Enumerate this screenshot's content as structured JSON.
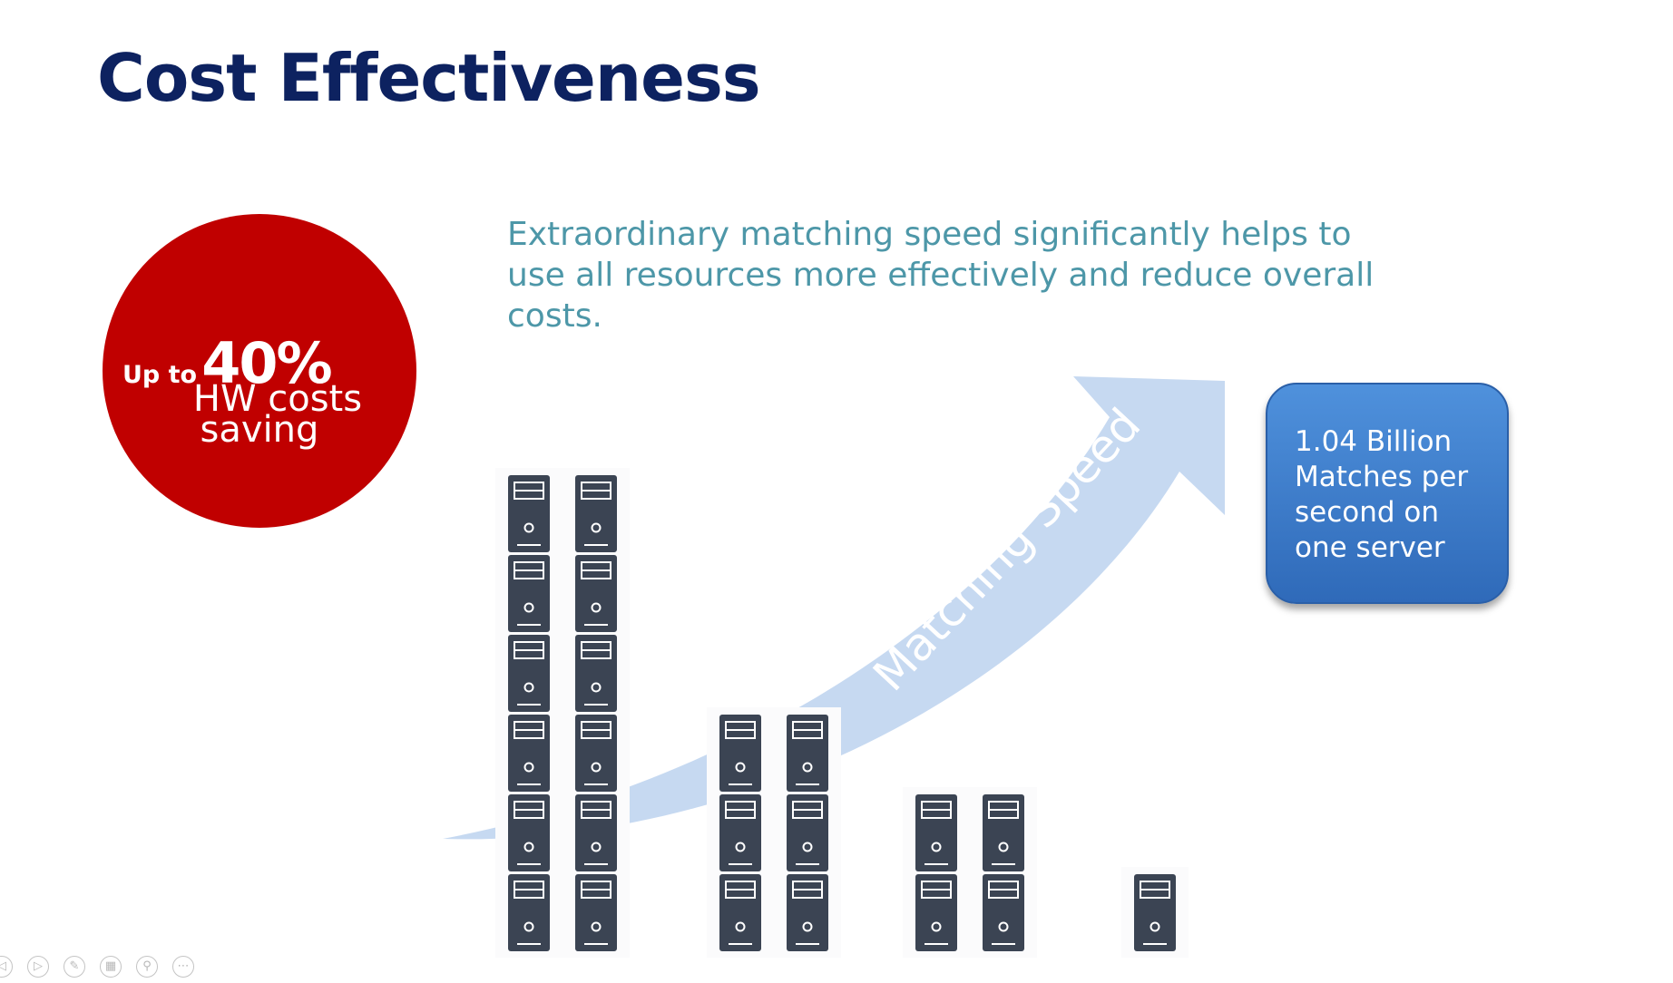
{
  "slide": {
    "title": "Cost Effectiveness",
    "description": "Extraordinary matching speed significantly helps to use all resources more effectively and reduce overall costs."
  },
  "badge": {
    "prefix": "Up to",
    "percent": "40%",
    "line1": "HW costs",
    "line2": "saving",
    "color": "#c00000"
  },
  "arrow": {
    "label": "Matching Speed",
    "color": "#c6d9f1"
  },
  "callout": {
    "line1": "1.04 Billion",
    "line2": "Matches per",
    "line3": "second on",
    "line4": "one server",
    "color": "#3e7ccc"
  },
  "server_groups": [
    {
      "columns": 2,
      "servers_per_column": 6
    },
    {
      "columns": 2,
      "servers_per_column": 3
    },
    {
      "columns": 2,
      "servers_per_column": 2
    },
    {
      "columns": 1,
      "servers_per_column": 1
    }
  ],
  "toolbar": {
    "buttons": [
      {
        "icon": "previous-icon",
        "glyph": "◁"
      },
      {
        "icon": "next-icon",
        "glyph": "▷"
      },
      {
        "icon": "pen-icon",
        "glyph": "✎"
      },
      {
        "icon": "slides-icon",
        "glyph": "▦"
      },
      {
        "icon": "zoom-icon",
        "glyph": "⚲"
      },
      {
        "icon": "more-icon",
        "glyph": "⋯"
      }
    ]
  }
}
